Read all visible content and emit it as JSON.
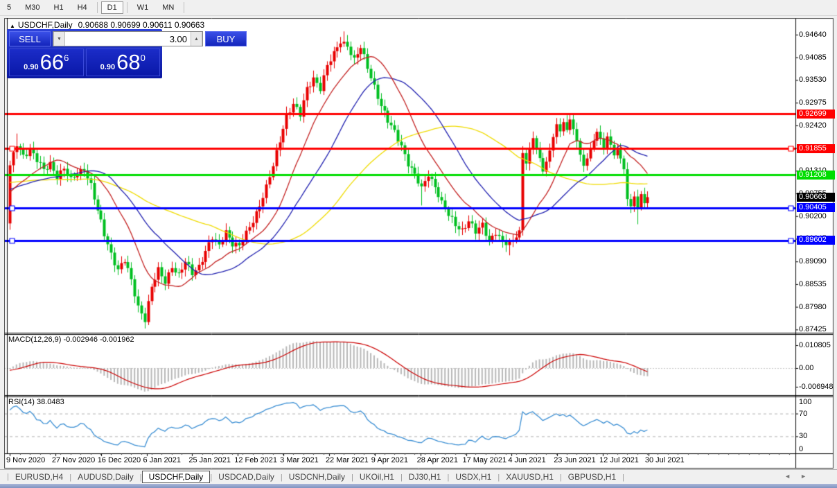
{
  "toolbar": {
    "groups": [
      [
        "5",
        "M30",
        "H1",
        "H4"
      ],
      [
        "D1"
      ],
      [
        "W1",
        "MN"
      ]
    ],
    "active": "D1"
  },
  "chart": {
    "collapse_icon": "▲",
    "title": "USDCHF,Daily",
    "ohlc": "0.90688 0.90699 0.90611 0.90663"
  },
  "trade_panel": {
    "sell_label": "SELL",
    "buy_label": "BUY",
    "volume": "3.00",
    "down_icon": "▼",
    "up_icon": "▲",
    "sell_price": {
      "small": "0.90",
      "big": "66",
      "sup": "6"
    },
    "buy_price": {
      "small": "0.90",
      "big": "68",
      "sup": "0"
    }
  },
  "price_axis": {
    "ticks": [
      "0.94640",
      "0.94085",
      "0.93530",
      "0.92975",
      "0.92420",
      "0.91865",
      "0.91310",
      "0.90755",
      "0.90200",
      "0.89645",
      "0.89090",
      "0.88535",
      "0.87980",
      "0.87425"
    ]
  },
  "macd": {
    "label": "MACD(12,26,9) -0.002946 -0.001962",
    "axis_labels": [
      "0.010805",
      "0.00",
      "-0.006948"
    ]
  },
  "rsi": {
    "label": "RSI(14) 38.0483",
    "axis_labels": [
      "100",
      "70",
      "30",
      "0"
    ]
  },
  "date_axis": {
    "labels": [
      "9 Nov 2020",
      "27 Nov 2020",
      "16 Dec 2020",
      "6 Jan 2021",
      "25 Jan 2021",
      "12 Feb 2021",
      "3 Mar 2021",
      "22 Mar 2021",
      "9 Apr 2021",
      "28 Apr 2021",
      "17 May 2021",
      "4 Jun 2021",
      "23 Jun 2021",
      "12 Jul 2021",
      "30 Jul 2021"
    ]
  },
  "tabs": {
    "items": [
      {
        "label": "EURUSD,H4",
        "active": false
      },
      {
        "label": "AUDUSD,Daily",
        "active": false
      },
      {
        "label": "USDCHF,Daily",
        "active": true
      },
      {
        "label": "USDCAD,Daily",
        "active": false
      },
      {
        "label": "USDCNH,Daily",
        "active": false
      },
      {
        "label": "UKOil,H1",
        "active": false
      },
      {
        "label": "DJ30,H1",
        "active": false
      },
      {
        "label": "USDX,H1",
        "active": false
      },
      {
        "label": "XAUUSD,H1",
        "active": false
      },
      {
        "label": "GBPUSD,H1",
        "active": false
      }
    ],
    "left_arrow": "◄",
    "right_arrow": "►"
  },
  "chart_data": {
    "type": "candlestick",
    "symbol": "USDCHF",
    "timeframe": "Daily",
    "ohlc_current": {
      "open": 0.90688,
      "high": 0.90699,
      "low": 0.90611,
      "close": 0.90663
    },
    "price_axis_range": [
      0.87425,
      0.9464
    ],
    "price_tick_step": 0.00555,
    "candle_count": 190,
    "first_open": 0.9002,
    "last_close": 0.90663,
    "bull_color": "#e80000",
    "bear_color": "#00bf20",
    "close_anchors": [
      [
        0,
        0.914
      ],
      [
        2,
        0.9195
      ],
      [
        4,
        0.917
      ],
      [
        6,
        0.9185
      ],
      [
        8,
        0.9155
      ],
      [
        10,
        0.913
      ],
      [
        12,
        0.915
      ],
      [
        14,
        0.912
      ],
      [
        16,
        0.9135
      ],
      [
        18,
        0.9105
      ],
      [
        20,
        0.9125
      ],
      [
        22,
        0.914
      ],
      [
        24,
        0.9095
      ],
      [
        26,
        0.903
      ],
      [
        28,
        0.8975
      ],
      [
        30,
        0.893
      ],
      [
        32,
        0.889
      ],
      [
        34,
        0.891
      ],
      [
        36,
        0.886
      ],
      [
        38,
        0.88
      ],
      [
        40,
        0.877
      ],
      [
        42,
        0.8845
      ],
      [
        44,
        0.8885
      ],
      [
        46,
        0.886
      ],
      [
        48,
        0.89
      ],
      [
        50,
        0.8875
      ],
      [
        52,
        0.8905
      ],
      [
        54,
        0.888
      ],
      [
        56,
        0.89
      ],
      [
        58,
        0.8935
      ],
      [
        60,
        0.8965
      ],
      [
        62,
        0.8945
      ],
      [
        64,
        0.8985
      ],
      [
        66,
        0.8955
      ],
      [
        68,
        0.8945
      ],
      [
        70,
        0.8975
      ],
      [
        72,
        0.901
      ],
      [
        74,
        0.905
      ],
      [
        76,
        0.909
      ],
      [
        78,
        0.914
      ],
      [
        80,
        0.9205
      ],
      [
        82,
        0.927
      ],
      [
        84,
        0.9295
      ],
      [
        86,
        0.9265
      ],
      [
        88,
        0.933
      ],
      [
        90,
        0.936
      ],
      [
        92,
        0.9335
      ],
      [
        94,
        0.9385
      ],
      [
        96,
        0.9415
      ],
      [
        98,
        0.945
      ],
      [
        100,
        0.944
      ],
      [
        102,
        0.94
      ],
      [
        104,
        0.943
      ],
      [
        106,
        0.9385
      ],
      [
        108,
        0.934
      ],
      [
        110,
        0.929
      ],
      [
        112,
        0.925
      ],
      [
        114,
        0.9225
      ],
      [
        116,
        0.9195
      ],
      [
        118,
        0.915
      ],
      [
        120,
        0.9118
      ],
      [
        122,
        0.9085
      ],
      [
        124,
        0.9125
      ],
      [
        126,
        0.9095
      ],
      [
        128,
        0.905
      ],
      [
        130,
        0.902
      ],
      [
        132,
        0.9
      ],
      [
        134,
        0.8988
      ],
      [
        136,
        0.9008
      ],
      [
        138,
        0.8978
      ],
      [
        140,
        0.8998
      ],
      [
        142,
        0.8962
      ],
      [
        144,
        0.8982
      ],
      [
        146,
        0.8952
      ],
      [
        148,
        0.895
      ],
      [
        150,
        0.897
      ],
      [
        151,
        0.8985
      ],
      [
        152,
        0.9175
      ],
      [
        153,
        0.915
      ],
      [
        154,
        0.9185
      ],
      [
        155,
        0.921
      ],
      [
        156,
        0.9185
      ],
      [
        157,
        0.916
      ],
      [
        158,
        0.913
      ],
      [
        159,
        0.9155
      ],
      [
        160,
        0.918
      ],
      [
        161,
        0.9215
      ],
      [
        162,
        0.9245
      ],
      [
        163,
        0.9225
      ],
      [
        164,
        0.925
      ],
      [
        165,
        0.923
      ],
      [
        166,
        0.9255
      ],
      [
        167,
        0.9235
      ],
      [
        168,
        0.9205
      ],
      [
        169,
        0.917
      ],
      [
        170,
        0.9145
      ],
      [
        171,
        0.916
      ],
      [
        172,
        0.9185
      ],
      [
        173,
        0.9205
      ],
      [
        174,
        0.9225
      ],
      [
        175,
        0.921
      ],
      [
        176,
        0.919
      ],
      [
        177,
        0.9215
      ],
      [
        178,
        0.9195
      ],
      [
        179,
        0.917
      ],
      [
        180,
        0.918
      ],
      [
        181,
        0.916
      ],
      [
        182,
        0.9135
      ],
      [
        183,
        0.906
      ],
      [
        184,
        0.9045
      ],
      [
        185,
        0.907
      ],
      [
        186,
        0.904
      ],
      [
        187,
        0.9075
      ],
      [
        188,
        0.9052
      ],
      [
        189,
        0.90663
      ]
    ],
    "wick_overrides": {
      "2": {
        "high": 0.9222
      },
      "40": {
        "low": 0.8745
      },
      "99": {
        "high": 0.9472
      },
      "122": {
        "low": 0.9046
      },
      "148": {
        "low": 0.8924
      },
      "186": {
        "low": 0.9
      }
    },
    "ma_lines": [
      {
        "period": 15,
        "color": "#c42222"
      },
      {
        "period": 30,
        "color": "#2020b0"
      },
      {
        "period": 60,
        "color": "#f0dc00"
      }
    ],
    "hlines": [
      {
        "price": "0.92699",
        "value": 0.92699,
        "color": "#ff0000",
        "selected": false
      },
      {
        "price": "0.91855",
        "value": 0.91855,
        "color": "#ff0000",
        "selected": true
      },
      {
        "price": "0.91208",
        "value": 0.91208,
        "color": "#00dd00",
        "selected": false
      },
      {
        "price": "0.90405",
        "value": 0.90405,
        "color": "#0000ff",
        "selected": true
      },
      {
        "price": "0.89602",
        "value": 0.89602,
        "color": "#0000ff",
        "selected": true
      }
    ],
    "current_price_chip": {
      "label": "0.90663",
      "value": 0.90663,
      "bg": "#000000"
    },
    "macd_params": [
      12,
      26,
      9
    ],
    "macd_values": [
      -0.002946,
      -0.001962
    ],
    "macd_axis": [
      0.010805,
      0.0,
      -0.006948
    ],
    "rsi_period": 14,
    "rsi_value": 38.0483,
    "rsi_levels": [
      70,
      30
    ],
    "rsi_color": "#3b8fd4",
    "macd_hist_color": "#b8b8b8",
    "macd_signal_color": "#cc0000"
  }
}
